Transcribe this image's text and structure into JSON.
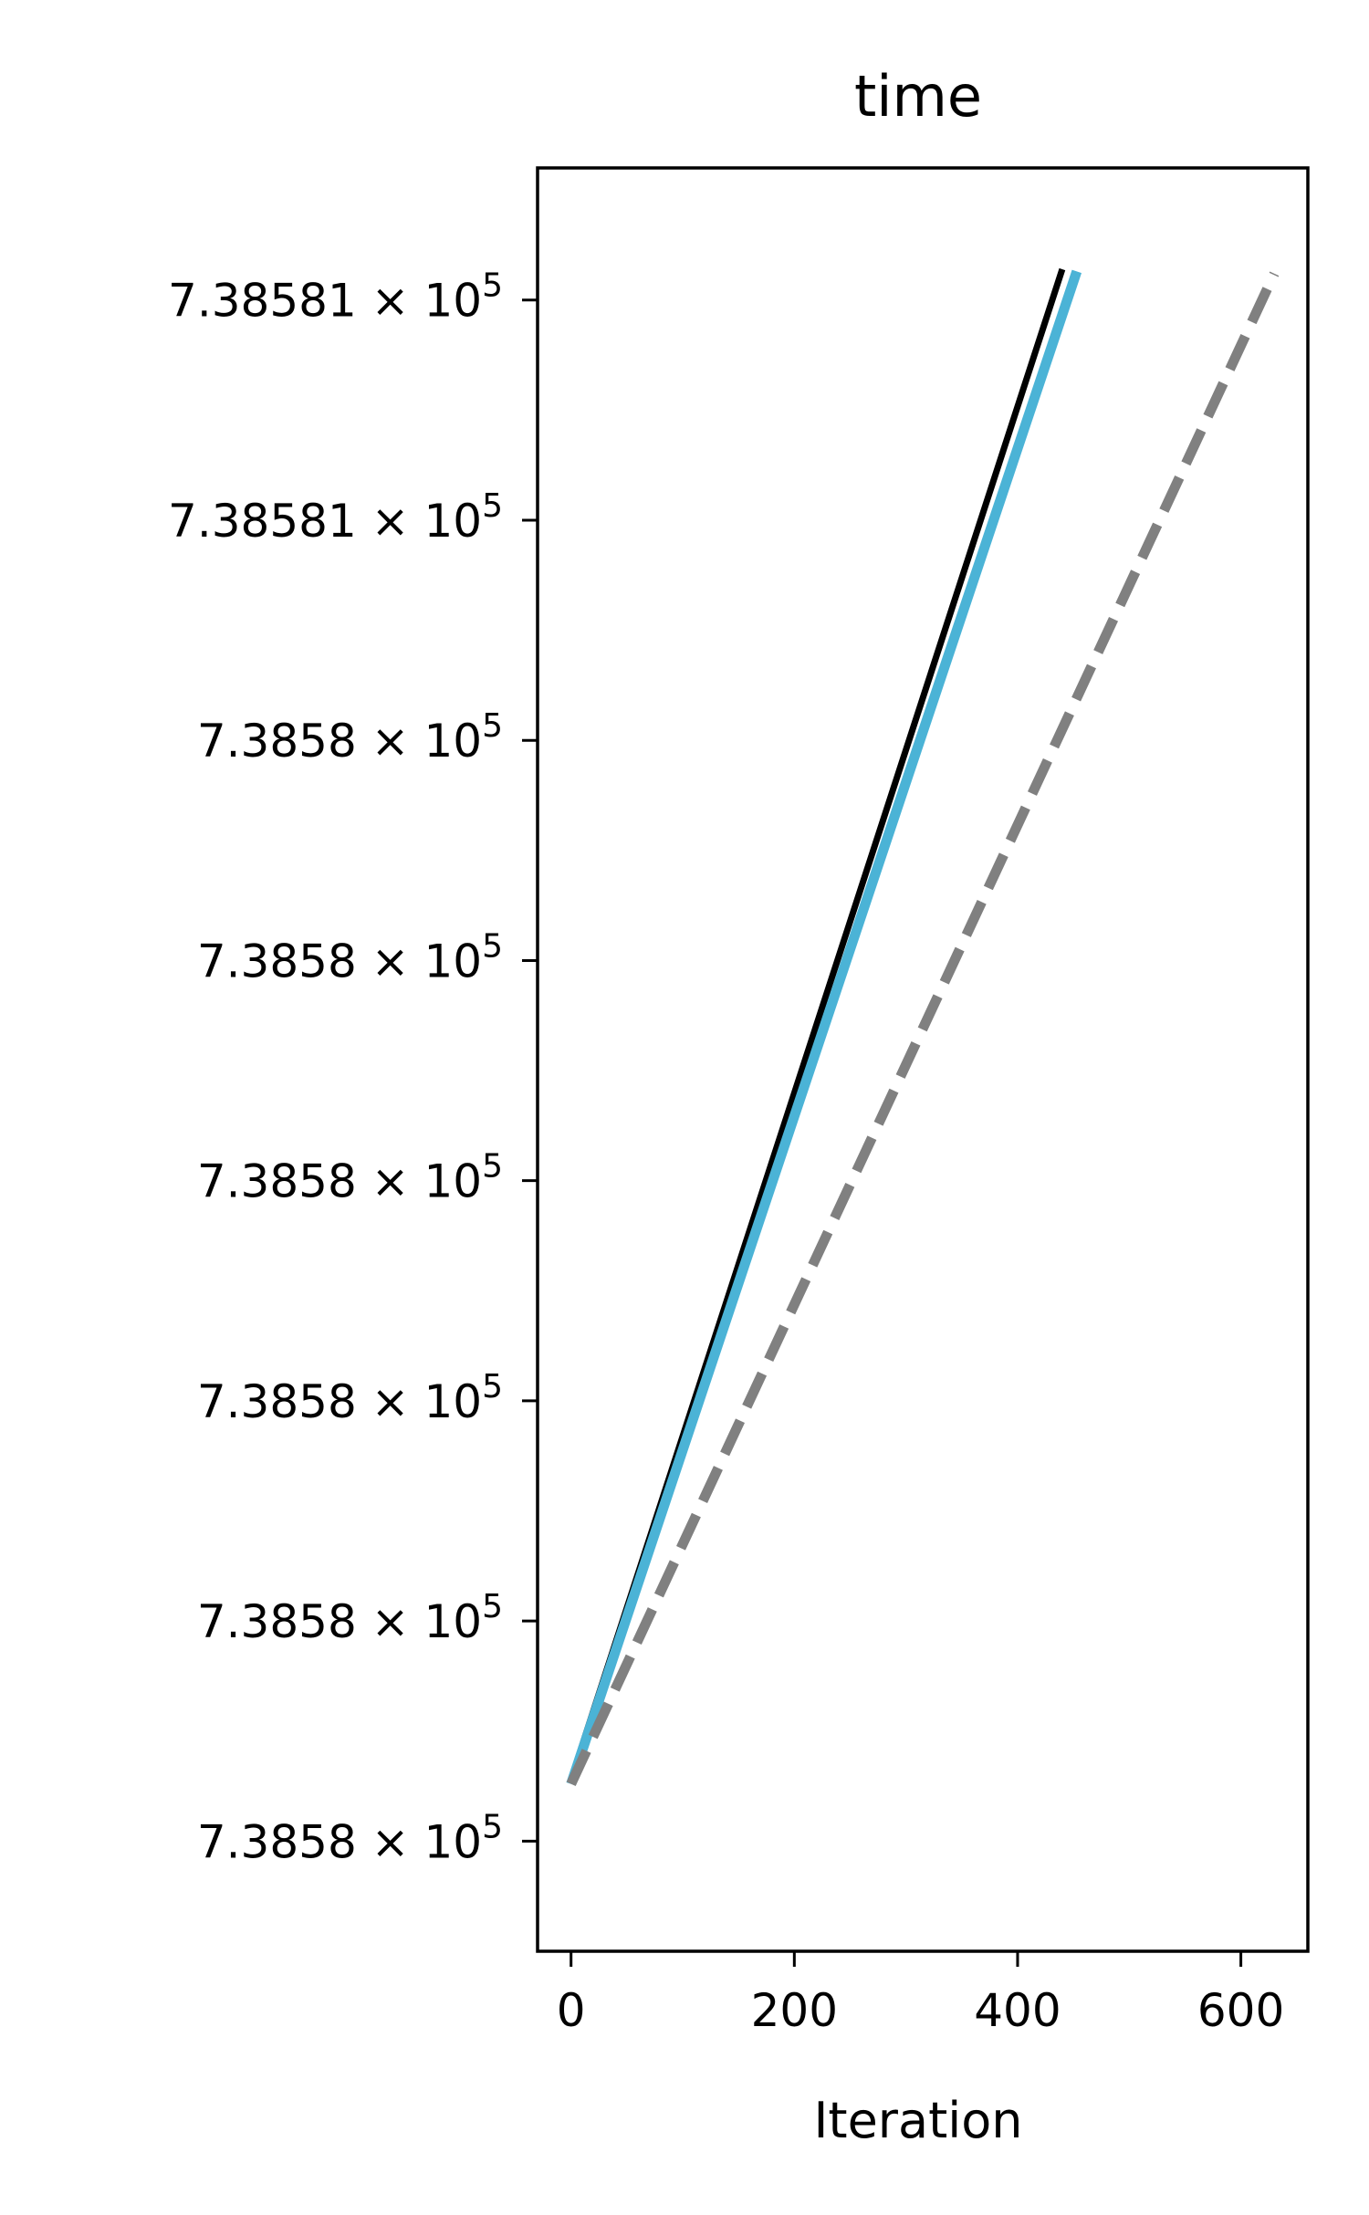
{
  "chart_data": {
    "type": "line",
    "title": "time",
    "xlabel": "Iteration",
    "ylabel": "",
    "xlim": [
      -30,
      660
    ],
    "xticks": [
      0,
      200,
      400,
      600
    ],
    "xtick_labels": [
      "0",
      "200",
      "400",
      "600"
    ],
    "ylim": [
      738580.0,
      738580.81
    ],
    "yticks": [
      738580.05,
      738580.15,
      738580.25,
      738580.35,
      738580.45,
      738580.55,
      738580.65,
      738580.75
    ],
    "ytick_labels": [
      {
        "mantissa": "7.3858",
        "times": "×",
        "base": "10",
        "exp": "5"
      },
      {
        "mantissa": "7.3858",
        "times": "×",
        "base": "10",
        "exp": "5"
      },
      {
        "mantissa": "7.3858",
        "times": "×",
        "base": "10",
        "exp": "5"
      },
      {
        "mantissa": "7.3858",
        "times": "×",
        "base": "10",
        "exp": "5"
      },
      {
        "mantissa": "7.3858",
        "times": "×",
        "base": "10",
        "exp": "5"
      },
      {
        "mantissa": "7.3858",
        "times": "×",
        "base": "10",
        "exp": "5"
      },
      {
        "mantissa": "7.38581",
        "times": "×",
        "base": "10",
        "exp": "5"
      },
      {
        "mantissa": "7.38581",
        "times": "×",
        "base": "10",
        "exp": "5"
      }
    ],
    "grid": false,
    "legend": false,
    "series": [
      {
        "color": "#000000",
        "style": "solid",
        "width": 7,
        "x": [
          0,
          440
        ],
        "y": [
          738580.078,
          738580.764
        ]
      },
      {
        "color": "#4bb3d6",
        "style": "solid",
        "width": 11,
        "x": [
          0,
          453
        ],
        "y": [
          738580.076,
          738580.763
        ]
      },
      {
        "color": "#808080",
        "style": "dashed",
        "width": 11,
        "x": [
          0,
          630
        ],
        "y": [
          738580.076,
          738580.762
        ]
      }
    ]
  }
}
